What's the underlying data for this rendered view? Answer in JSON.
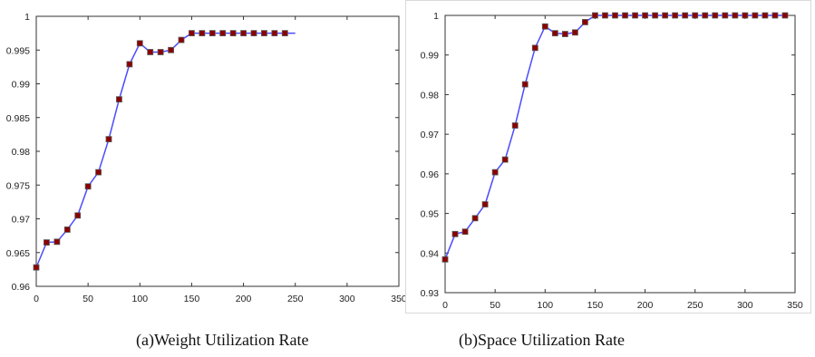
{
  "captions": {
    "left": "(a)Weight Utilization Rate",
    "right": "(b)Space Utilization Rate"
  },
  "colors": {
    "line": "#4b4bff",
    "marker_fill": "#8b0000",
    "marker_stroke": "#5b5b5b",
    "axes": "#333333",
    "text": "#222222"
  },
  "chart_data": [
    {
      "type": "line",
      "title": "",
      "xlabel": "",
      "ylabel": "",
      "xlim": [
        0,
        350
      ],
      "ylim": [
        0.96,
        1
      ],
      "xticks": [
        "0",
        "50",
        "100",
        "150",
        "200",
        "250",
        "300",
        "350"
      ],
      "yticks": [
        "0.96",
        "0.965",
        "0.97",
        "0.975",
        "0.98",
        "0.985",
        "0.99",
        "0.995",
        "1"
      ],
      "grid": false,
      "series": [
        {
          "x": [
            0,
            10,
            20,
            30,
            40,
            50,
            60,
            70,
            80,
            90,
            100,
            110,
            120,
            130,
            140,
            150,
            160,
            170,
            180,
            190,
            200,
            210,
            220,
            230,
            240,
            250
          ],
          "values": [
            0.9628,
            0.9665,
            0.9666,
            0.9684,
            0.9705,
            0.9748,
            0.9769,
            0.9818,
            0.9877,
            0.9929,
            0.996,
            0.9947,
            0.9947,
            0.995,
            0.9965,
            0.9975,
            0.9975,
            0.9975,
            0.9975,
            0.9975,
            0.9975,
            0.9975,
            0.9975,
            0.9975,
            0.9975,
            0.9975
          ],
          "marker_x_count": 25
        }
      ]
    },
    {
      "type": "line",
      "title": "",
      "xlabel": "",
      "ylabel": "",
      "xlim": [
        0,
        350
      ],
      "ylim": [
        0.93,
        1
      ],
      "xticks": [
        "0",
        "50",
        "100",
        "150",
        "200",
        "250",
        "300",
        "350"
      ],
      "yticks": [
        "0.93",
        "0.94",
        "0.95",
        "0.96",
        "0.97",
        "0.98",
        "0.99",
        "1"
      ],
      "grid": false,
      "series": [
        {
          "x": [
            0,
            10,
            20,
            30,
            40,
            50,
            60,
            70,
            80,
            90,
            100,
            110,
            120,
            130,
            140,
            150,
            160,
            170,
            180,
            190,
            200,
            210,
            220,
            230,
            240,
            250,
            260,
            270,
            280,
            290,
            300,
            310,
            320,
            330,
            340
          ],
          "values": [
            0.9384,
            0.9448,
            0.9454,
            0.9488,
            0.9523,
            0.9604,
            0.9636,
            0.9722,
            0.9826,
            0.9918,
            0.9972,
            0.9955,
            0.9953,
            0.9957,
            0.9983,
            1.0,
            1.0,
            1.0,
            1.0,
            1.0,
            1.0,
            1.0,
            1.0,
            1.0,
            1.0,
            1.0,
            1.0,
            1.0,
            1.0,
            1.0,
            1.0,
            1.0,
            1.0,
            1.0,
            1.0
          ],
          "marker_x_count": 35
        }
      ]
    }
  ]
}
